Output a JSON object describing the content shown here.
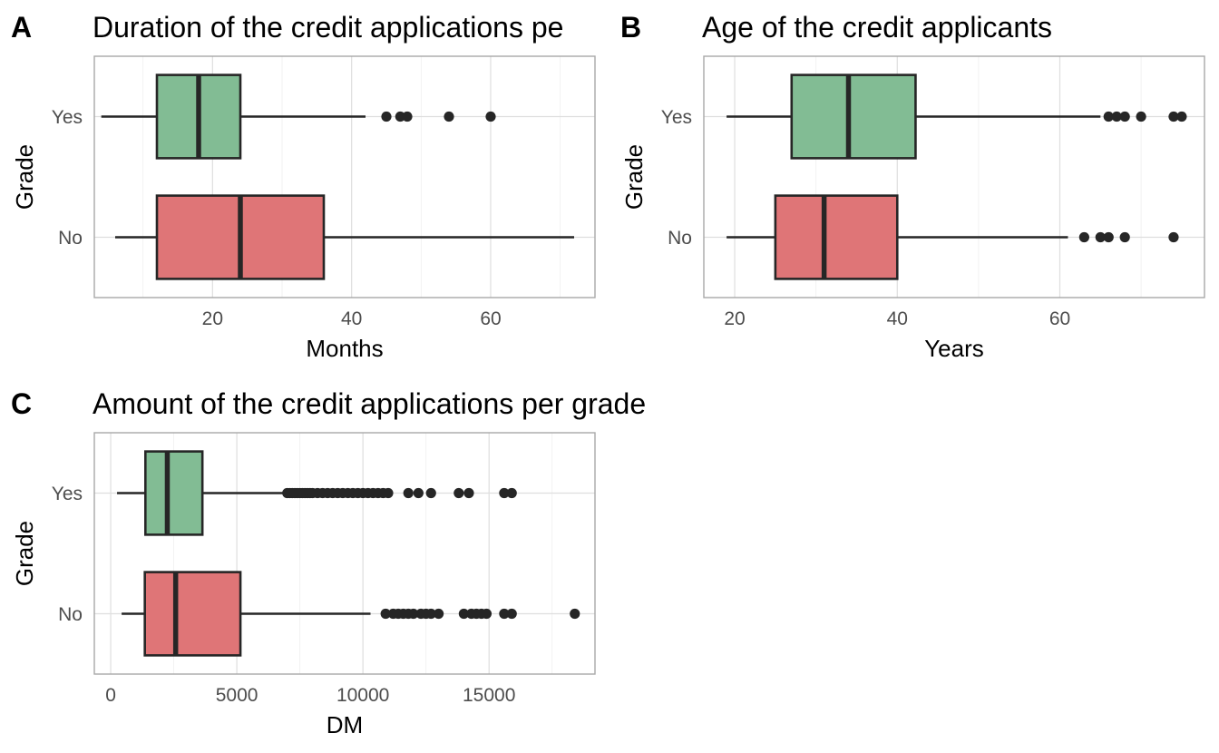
{
  "chart_data": [
    {
      "type": "boxplot",
      "tag": "A",
      "title": "Duration of the credit applications pe",
      "xlabel": "Months",
      "ylabel": "Grade",
      "xlim": [
        3,
        75
      ],
      "xticks": [
        20,
        40,
        60
      ],
      "xticks_minor": [
        10,
        30,
        50,
        70
      ],
      "categories": [
        "Yes",
        "No"
      ],
      "grid": true,
      "boxes": [
        {
          "category": "Yes",
          "fill": "#82bc94",
          "whisker_low": 4,
          "q1": 12,
          "median": 18,
          "q3": 24,
          "whisker_high": 42,
          "outliers": [
            45,
            47,
            48,
            54,
            60
          ]
        },
        {
          "category": "No",
          "fill": "#df7577",
          "whisker_low": 6,
          "q1": 12,
          "median": 24,
          "q3": 36,
          "whisker_high": 72,
          "outliers": []
        }
      ]
    },
    {
      "type": "boxplot",
      "tag": "B",
      "title": "Age of the credit applicants",
      "xlabel": "Years",
      "ylabel": "Grade",
      "xlim": [
        16.2,
        77.8
      ],
      "xticks": [
        20,
        40,
        60
      ],
      "xticks_minor": [
        30,
        50,
        70
      ],
      "categories": [
        "Yes",
        "No"
      ],
      "grid": true,
      "boxes": [
        {
          "category": "Yes",
          "fill": "#82bc94",
          "whisker_low": 19,
          "q1": 27,
          "median": 34,
          "q3": 42.25,
          "whisker_high": 65,
          "outliers": [
            66,
            67,
            68,
            70,
            74,
            75
          ]
        },
        {
          "category": "No",
          "fill": "#df7577",
          "whisker_low": 19,
          "q1": 25,
          "median": 31,
          "q3": 40,
          "whisker_high": 61,
          "outliers": [
            63,
            65,
            66,
            68,
            74
          ]
        }
      ]
    },
    {
      "type": "boxplot",
      "tag": "C",
      "title": "Amount of the credit applications per grade",
      "xlabel": "DM",
      "ylabel": "Grade",
      "xlim": [
        -650,
        19200
      ],
      "xticks": [
        0,
        5000,
        10000,
        15000
      ],
      "xticks_minor": [
        2500,
        7500,
        12500,
        17500
      ],
      "categories": [
        "Yes",
        "No"
      ],
      "grid": true,
      "boxes": [
        {
          "category": "Yes",
          "fill": "#82bc94",
          "whisker_low": 250,
          "q1": 1375,
          "median": 2244,
          "q3": 3635,
          "whisker_high": 7000,
          "outliers": [
            7000,
            7100,
            7200,
            7300,
            7400,
            7500,
            7600,
            7700,
            7800,
            7900,
            8000,
            8200,
            8400,
            8600,
            8800,
            9000,
            9200,
            9400,
            9600,
            9800,
            10000,
            10200,
            10400,
            10600,
            10800,
            11000,
            11800,
            12200,
            12700,
            13800,
            14200,
            15600,
            15900
          ]
        },
        {
          "category": "No",
          "fill": "#df7577",
          "whisker_low": 433,
          "q1": 1352,
          "median": 2575,
          "q3": 5142,
          "whisker_high": 10300,
          "outliers": [
            10900,
            11200,
            11400,
            11600,
            11800,
            12000,
            12300,
            12500,
            12700,
            13000,
            14000,
            14300,
            14500,
            14700,
            14900,
            15600,
            15900,
            18400
          ]
        }
      ]
    }
  ]
}
